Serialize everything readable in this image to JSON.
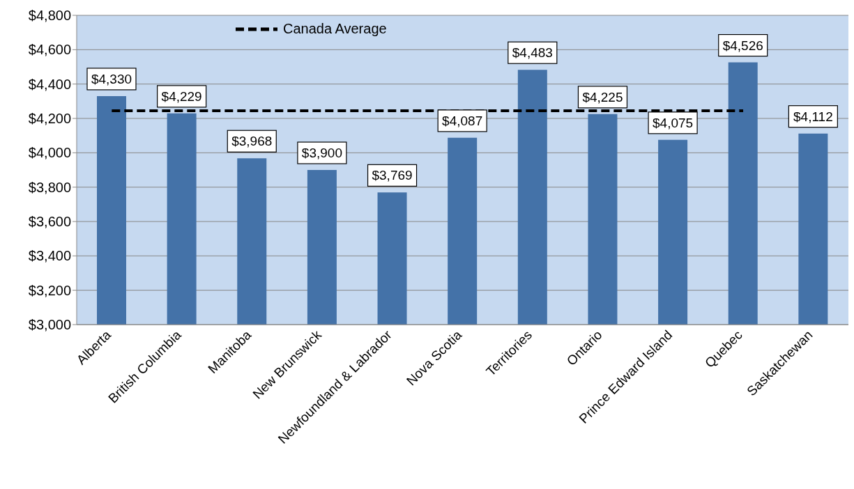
{
  "chart_data": {
    "type": "bar",
    "categories": [
      "Alberta",
      "British Columbia",
      "Manitoba",
      "New Brunswick",
      "Newfoundland & Labrador",
      "Nova Scotia",
      "Territories",
      "Ontario",
      "Prince Edward Island",
      "Quebec",
      "Saskatchewan"
    ],
    "series": [
      {
        "color": "#4472a8",
        "values": [
          4330,
          4229,
          3968,
          3900,
          3769,
          4087,
          4483,
          4225,
          4075,
          4526,
          4112
        ],
        "value_labels": [
          "$4,330",
          "$4,229",
          "$3,968",
          "$3,900",
          "$3,769",
          "$4,087",
          "$4,483",
          "$4,225",
          "$4,075",
          "$4,526",
          "$4,112"
        ]
      },
      {
        "type": "line",
        "name": "Canada Average",
        "color": "#000000",
        "line_style": "dashed",
        "marker": "none",
        "values": [
          4245,
          4245,
          4245,
          4245,
          4245,
          4245,
          4245,
          4245,
          4245,
          4245,
          null
        ]
      }
    ],
    "ylim": [
      3000,
      4800
    ],
    "yticks": [
      {
        "value": 3000,
        "label": "$3,000"
      },
      {
        "value": 3200,
        "label": "$3,200"
      },
      {
        "value": 3400,
        "label": "$3,400"
      },
      {
        "value": 3600,
        "label": "$3,600"
      },
      {
        "value": 3800,
        "label": "$3,800"
      },
      {
        "value": 4000,
        "label": "$4,000"
      },
      {
        "value": 4200,
        "label": "$4,200"
      },
      {
        "value": 4400,
        "label": "$4,400"
      },
      {
        "value": 4600,
        "label": "$4,600"
      },
      {
        "value": 4800,
        "label": "$4,800"
      }
    ],
    "grid": "y",
    "legend": "top"
  }
}
